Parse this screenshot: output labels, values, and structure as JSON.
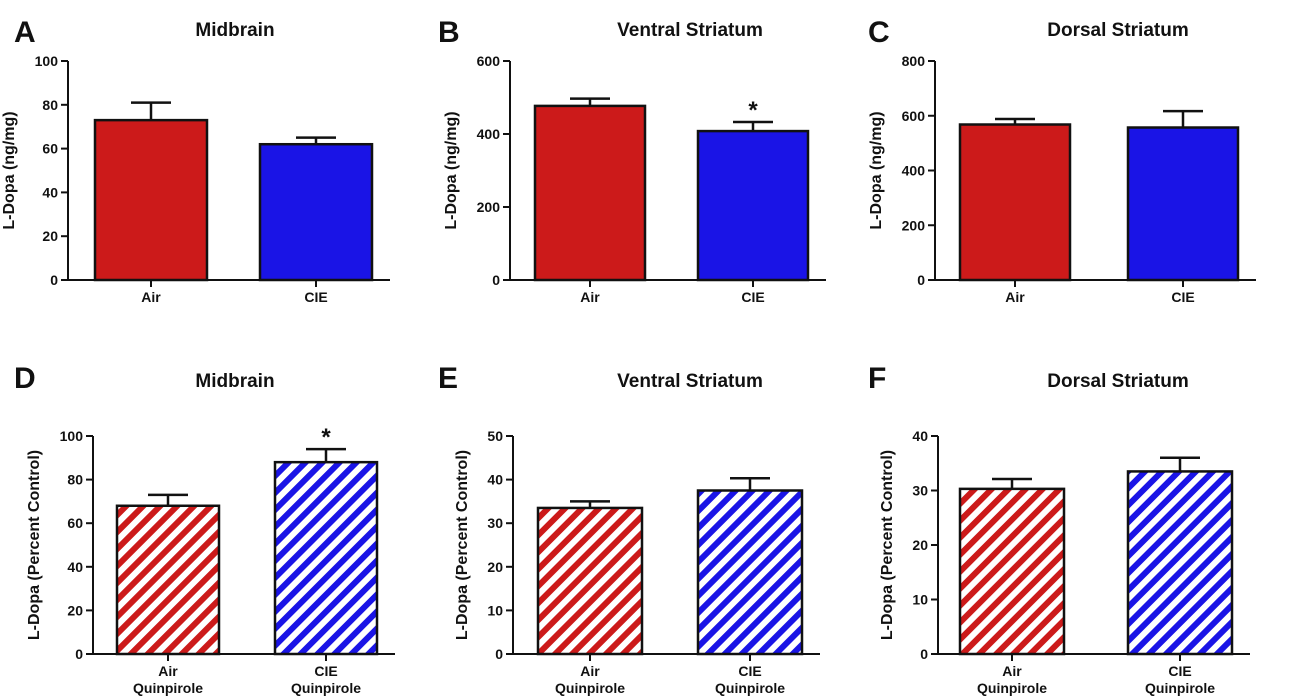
{
  "chart_data": [
    {
      "panel": "A",
      "title": "Midbrain",
      "type": "bar",
      "ylabel": "L-Dopa (ng/mg)",
      "ylim": [
        0,
        100
      ],
      "yticks": [
        0,
        20,
        40,
        60,
        80,
        100
      ],
      "categories": [
        [
          "Air"
        ],
        [
          "CIE"
        ]
      ],
      "values": [
        73,
        62
      ],
      "errors": [
        8,
        3
      ],
      "colors": [
        "#cc1a1a",
        "#1a14e6"
      ],
      "pattern": "solid",
      "significance": [
        "",
        ""
      ]
    },
    {
      "panel": "B",
      "title": "Ventral Striatum",
      "type": "bar",
      "ylabel": "L-Dopa (ng/mg)",
      "ylim": [
        0,
        600
      ],
      "yticks": [
        0,
        200,
        400,
        600
      ],
      "categories": [
        [
          "Air"
        ],
        [
          "CIE"
        ]
      ],
      "values": [
        477,
        408
      ],
      "errors": [
        20,
        25
      ],
      "colors": [
        "#cc1a1a",
        "#1a14e6"
      ],
      "pattern": "solid",
      "significance": [
        "",
        "*"
      ]
    },
    {
      "panel": "C",
      "title": "Dorsal Striatum",
      "type": "bar",
      "ylabel": "L-Dopa (ng/mg)",
      "ylim": [
        0,
        800
      ],
      "yticks": [
        0,
        200,
        400,
        600,
        800
      ],
      "categories": [
        [
          "Air"
        ],
        [
          "CIE"
        ]
      ],
      "values": [
        568,
        557
      ],
      "errors": [
        20,
        60
      ],
      "colors": [
        "#cc1a1a",
        "#1a14e6"
      ],
      "pattern": "solid",
      "significance": [
        "",
        ""
      ]
    },
    {
      "panel": "D",
      "title": "Midbrain",
      "type": "bar",
      "ylabel": "L-Dopa (Percent Control)",
      "ylim": [
        0,
        100
      ],
      "yticks": [
        0,
        20,
        40,
        60,
        80,
        100
      ],
      "categories": [
        [
          "Air",
          "Quinpirole"
        ],
        [
          "CIE",
          "Quinpirole"
        ]
      ],
      "values": [
        68,
        88
      ],
      "errors": [
        5,
        6
      ],
      "colors": [
        "#cc1a1a",
        "#1a14e6"
      ],
      "pattern": "hatched",
      "significance": [
        "",
        "*"
      ]
    },
    {
      "panel": "E",
      "title": "Ventral Striatum",
      "type": "bar",
      "ylabel": "L-Dopa (Percent Control)",
      "ylim": [
        0,
        50
      ],
      "yticks": [
        0,
        10,
        20,
        30,
        40,
        50
      ],
      "categories": [
        [
          "Air",
          "Quinpirole"
        ],
        [
          "CIE",
          "Quinpirole"
        ]
      ],
      "values": [
        33.5,
        37.5
      ],
      "errors": [
        1.5,
        2.8
      ],
      "colors": [
        "#cc1a1a",
        "#1a14e6"
      ],
      "pattern": "hatched",
      "significance": [
        "",
        ""
      ]
    },
    {
      "panel": "F",
      "title": "Dorsal Striatum",
      "type": "bar",
      "ylabel": "L-Dopa (Percent Control)",
      "ylim": [
        0,
        40
      ],
      "yticks": [
        0,
        10,
        20,
        30,
        40
      ],
      "categories": [
        [
          "Air",
          "Quinpirole"
        ],
        [
          "CIE",
          "Quinpirole"
        ]
      ],
      "values": [
        30.3,
        33.5
      ],
      "errors": [
        1.8,
        2.5
      ],
      "colors": [
        "#cc1a1a",
        "#1a14e6"
      ],
      "pattern": "hatched",
      "significance": [
        "",
        ""
      ]
    }
  ]
}
